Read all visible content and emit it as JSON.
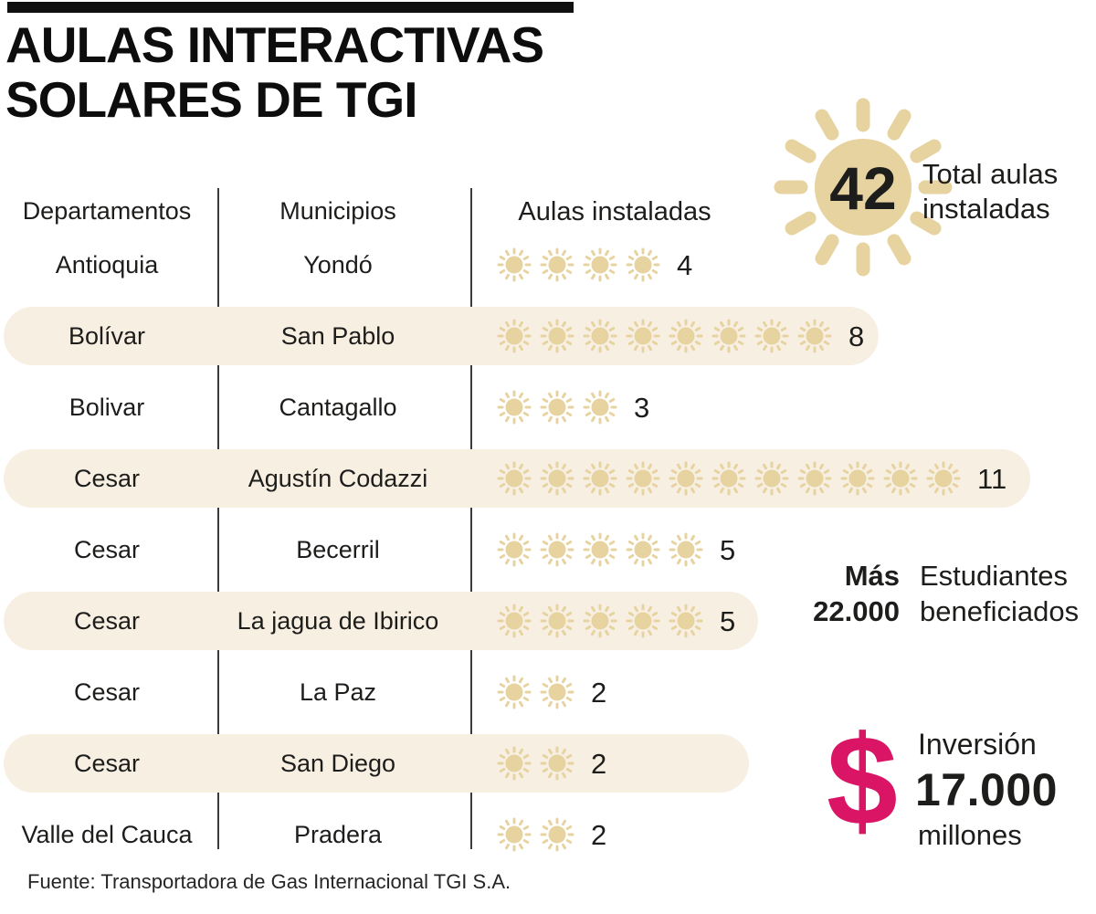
{
  "title": {
    "line1": "AULAS INTERACTIVAS",
    "line2": "SOLARES DE TGI"
  },
  "total_badge": {
    "value": "42",
    "label_line1": "Total aulas",
    "label_line2": "instaladas"
  },
  "table": {
    "headers": [
      "Departamentos",
      "Municipios",
      "Aulas instaladas"
    ],
    "rows": [
      {
        "departamento": "Antioquia",
        "municipio": "Yondó",
        "aulas": 4,
        "highlight": false
      },
      {
        "departamento": "Bolívar",
        "municipio": "San Pablo",
        "aulas": 8,
        "highlight": true,
        "pill_width": 958
      },
      {
        "departamento": "Bolivar",
        "municipio": "Cantagallo",
        "aulas": 3,
        "highlight": false
      },
      {
        "departamento": "Cesar",
        "municipio": "Agustín Codazzi",
        "aulas": 11,
        "highlight": true,
        "pill_width": 1124
      },
      {
        "departamento": "Cesar",
        "municipio": "Becerril",
        "aulas": 5,
        "highlight": false
      },
      {
        "departamento": "Cesar",
        "municipio": "La jagua de Ibirico",
        "aulas": 5,
        "highlight": true,
        "pill_width": 826
      },
      {
        "departamento": "Cesar",
        "municipio": "La Paz",
        "aulas": 2,
        "highlight": false
      },
      {
        "departamento": "Cesar",
        "municipio": "San Diego",
        "aulas": 2,
        "highlight": true,
        "pill_width": 816
      },
      {
        "departamento": "Valle del Cauca",
        "municipio": "Pradera",
        "aulas": 2,
        "highlight": false
      }
    ]
  },
  "students": {
    "prefix": "Más",
    "value": "22.000",
    "label_line1": "Estudiantes",
    "label_line2": "beneficiados"
  },
  "investment": {
    "currency_symbol": "$",
    "label": "Inversión",
    "value": "17.000",
    "unit": "millones"
  },
  "source": "Fuente: Transportadora de Gas Internacional TGI S.A.",
  "colors": {
    "sun": "#e7d3a0",
    "row_highlight": "#f7efe2",
    "accent_pink": "#da1565",
    "title_bar": "#101010",
    "text": "#1d1d1b"
  },
  "chart_data": {
    "type": "bar",
    "subtype": "pictograph",
    "icon": "sun",
    "title": "AULAS INTERACTIVAS SOLARES DE TGI",
    "categories": [
      "Yondó",
      "San Pablo",
      "Cantagallo",
      "Agustín Codazzi",
      "Becerril",
      "La jagua de Ibirico",
      "La Paz",
      "San Diego",
      "Pradera"
    ],
    "group_labels": [
      "Antioquia",
      "Bolívar",
      "Bolivar",
      "Cesar",
      "Cesar",
      "Cesar",
      "Cesar",
      "Cesar",
      "Valle del Cauca"
    ],
    "values": [
      4,
      8,
      3,
      11,
      5,
      5,
      2,
      2,
      2
    ],
    "total": 42,
    "value_axis_label": "Aulas instaladas",
    "legend_position": "none",
    "grid": false,
    "annotations": [
      "Total aulas instaladas: 42",
      "Más 22.000 estudiantes beneficiados",
      "Inversión $ 17.000 millones"
    ],
    "source": "Fuente: Transportadora de Gas Internacional TGI S.A."
  }
}
